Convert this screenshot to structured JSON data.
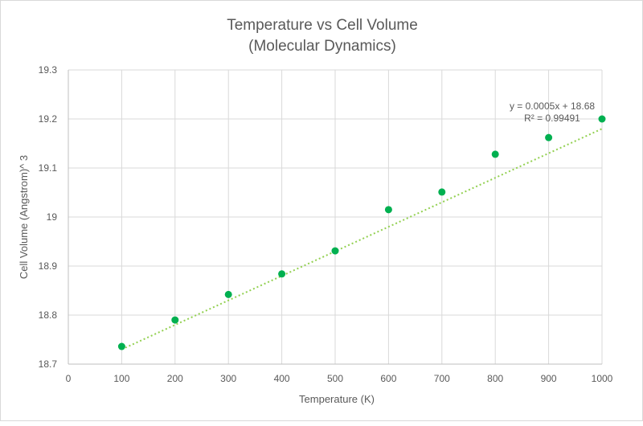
{
  "chart_data": {
    "type": "scatter",
    "title": "Temperature vs Cell Volume",
    "subtitle": "(Molecular Dynamics)",
    "xlabel": "Temperature (K)",
    "ylabel": "Cell Volume (Angstrom)^ 3",
    "xlim": [
      0,
      1000
    ],
    "ylim": [
      18.7,
      19.3
    ],
    "x_ticks": [
      "0",
      "100",
      "200",
      "300",
      "400",
      "500",
      "600",
      "700",
      "800",
      "900",
      "1000"
    ],
    "y_ticks": [
      "18.7",
      "18.8",
      "18.9",
      "19",
      "19.1",
      "19.2",
      "19.3"
    ],
    "grid": true,
    "series": [
      {
        "name": "Cell Volume",
        "x": [
          100,
          200,
          300,
          400,
          500,
          600,
          700,
          800,
          900,
          1000
        ],
        "y": [
          18.736,
          18.79,
          18.842,
          18.884,
          18.931,
          19.015,
          19.051,
          19.128,
          19.162,
          19.2
        ],
        "color": "#00b050"
      }
    ],
    "trendline": {
      "type": "linear",
      "slope": 0.0005,
      "intercept": 18.68,
      "x_range": [
        100,
        1000
      ],
      "color": "#92d050",
      "equation_label": "y = 0.0005x + 18.68",
      "r2_label": "R² = 0.99491"
    }
  }
}
